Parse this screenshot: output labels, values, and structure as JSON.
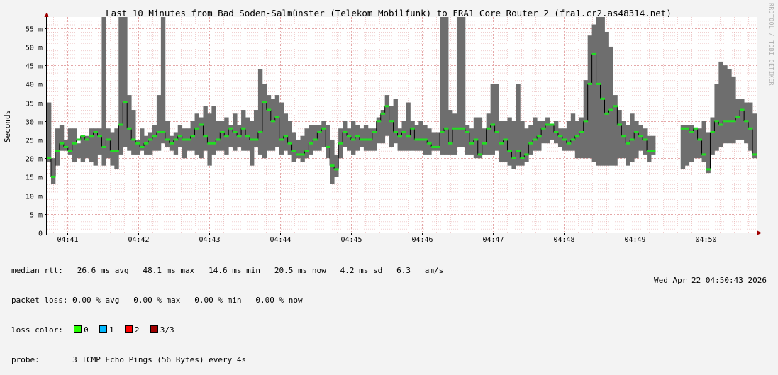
{
  "colors": {
    "canvas": "#f3f3f3",
    "plot_bg": "#ffffff",
    "grid": "#e5a8a8",
    "smoke": "#6e6e6e",
    "median": "#22dd22",
    "loss_0": "#26ff00",
    "loss_1": "#00b8ff",
    "loss_2": "#ff0000",
    "loss_3": "#a00000"
  },
  "side_label": "RRDTOOL / TOBI OETIKER",
  "chart_data": {
    "type": "area",
    "title": "Last 10 Minutes from Bad Soden-Salmünster (Telekom Mobilfunk) to FRA1 Core Router 2 (fra1.cr2.as48314.net)",
    "ylabel": "Seconds",
    "ylim": [
      0,
      58
    ],
    "yticks": [
      "0",
      "5 m",
      "10 m",
      "15 m",
      "20 m",
      "25 m",
      "30 m",
      "35 m",
      "40 m",
      "45 m",
      "50 m",
      "55 m"
    ],
    "xticks": [
      "04:41",
      "04:42",
      "04:43",
      "04:44",
      "04:45",
      "04:46",
      "04:47",
      "04:48",
      "04:49",
      "04:50"
    ],
    "grid": true,
    "series": [
      {
        "name": "median rtt",
        "median": [
          20,
          15,
          22,
          24,
          23,
          22,
          24,
          25,
          26,
          25,
          26,
          27,
          26,
          23,
          25,
          22,
          22,
          29,
          35,
          28,
          25,
          24,
          23,
          24,
          25,
          26,
          27,
          27,
          25,
          24,
          25,
          26,
          25,
          25,
          26,
          28,
          29,
          26,
          24,
          24,
          25,
          27,
          26,
          28,
          27,
          26,
          28,
          26,
          25,
          25,
          27,
          35,
          33,
          30,
          31,
          25,
          26,
          24,
          22,
          21,
          21,
          22,
          24,
          25,
          27,
          28,
          23,
          18,
          17,
          24,
          27,
          26,
          25,
          26,
          25,
          25,
          25,
          27,
          30,
          32,
          34,
          30,
          27,
          26,
          27,
          26,
          28,
          25,
          25,
          25,
          24,
          23,
          23,
          27,
          28,
          24,
          28,
          28,
          28,
          27,
          24,
          25,
          21,
          24,
          28,
          29,
          27,
          24,
          25,
          22,
          20,
          22,
          20,
          21,
          24,
          25,
          26,
          28,
          29,
          29,
          27,
          26,
          25,
          24,
          25,
          26,
          27,
          30,
          40,
          48,
          40,
          36,
          32,
          33,
          34,
          29,
          26,
          24,
          25,
          27,
          26,
          25,
          22,
          22,
          null,
          null,
          null,
          null,
          null,
          null,
          28,
          28,
          27,
          28,
          25,
          21,
          17,
          27,
          30,
          29,
          30,
          30,
          30,
          31,
          33,
          30,
          28,
          21
        ],
        "low": [
          19,
          13,
          18,
          22,
          22,
          21,
          19,
          20,
          19,
          20,
          19,
          18,
          21,
          18,
          20,
          18,
          17,
          21,
          23,
          22,
          21,
          21,
          22,
          21,
          21,
          22,
          22,
          24,
          23,
          22,
          21,
          23,
          20,
          22,
          22,
          21,
          20,
          22,
          18,
          21,
          22,
          22,
          21,
          23,
          22,
          23,
          22,
          22,
          18,
          23,
          21,
          20,
          22,
          22,
          23,
          21,
          22,
          21,
          19,
          20,
          19,
          20,
          21,
          22,
          22,
          23,
          20,
          13,
          15,
          20,
          23,
          22,
          21,
          22,
          23,
          22,
          22,
          22,
          24,
          24,
          26,
          23,
          24,
          22,
          22,
          22,
          22,
          22,
          22,
          21,
          21,
          22,
          22,
          21,
          21,
          21,
          21,
          23,
          23,
          21,
          21,
          20,
          20,
          21,
          21,
          21,
          22,
          19,
          19,
          18,
          17,
          18,
          18,
          19,
          21,
          22,
          22,
          24,
          24,
          25,
          24,
          23,
          22,
          22,
          22,
          20,
          20,
          20,
          20,
          19,
          18,
          18,
          18,
          18,
          18,
          20,
          20,
          18,
          19,
          20,
          22,
          21,
          19,
          21,
          null,
          null,
          null,
          null,
          null,
          null,
          17,
          18,
          19,
          20,
          20,
          19,
          16,
          21,
          22,
          23,
          24,
          24,
          24,
          25,
          25,
          24,
          22,
          20
        ],
        "high": [
          35,
          20,
          28,
          29,
          25,
          28,
          28,
          24,
          26,
          26,
          28,
          28,
          28,
          58,
          28,
          27,
          28,
          58,
          58,
          37,
          33,
          25,
          28,
          26,
          27,
          29,
          37,
          58,
          30,
          26,
          27,
          29,
          28,
          28,
          30,
          32,
          31,
          34,
          32,
          34,
          30,
          30,
          31,
          29,
          32,
          29,
          33,
          31,
          30,
          33,
          44,
          40,
          37,
          36,
          37,
          35,
          32,
          30,
          27,
          25,
          26,
          28,
          29,
          29,
          29,
          30,
          29,
          25,
          21,
          28,
          30,
          28,
          30,
          29,
          28,
          29,
          28,
          28,
          31,
          33,
          37,
          34,
          36,
          28,
          30,
          35,
          30,
          29,
          30,
          29,
          28,
          27,
          27,
          58,
          58,
          33,
          32,
          58,
          58,
          29,
          28,
          31,
          31,
          28,
          32,
          40,
          40,
          30,
          30,
          31,
          30,
          40,
          30,
          28,
          29,
          31,
          30,
          30,
          31,
          29,
          30,
          28,
          28,
          30,
          32,
          30,
          31,
          41,
          53,
          56,
          58,
          58,
          54,
          50,
          37,
          33,
          30,
          29,
          32,
          30,
          29,
          28,
          26,
          26,
          null,
          null,
          null,
          null,
          null,
          null,
          29,
          29,
          29,
          28,
          28,
          30,
          27,
          31,
          40,
          46,
          45,
          44,
          42,
          36,
          36,
          35,
          35,
          32
        ]
      }
    ],
    "median_markers_color": "green"
  },
  "legend": {
    "rows": [
      {
        "label": "median rtt:",
        "values": "26.6 ms avg   48.1 ms max   14.6 ms min   20.5 ms now   4.2 ms sd   6.3   am/s"
      },
      {
        "label": "packet loss:",
        "values": "0.00 % avg   0.00 % max   0.00 % min   0.00 % now"
      },
      {
        "label": "loss color:"
      },
      {
        "label": "probe:",
        "values": "3 ICMP Echo Pings (56 Bytes) every 4s"
      }
    ],
    "loss_colors": [
      {
        "label": "0",
        "color": "#26ff00"
      },
      {
        "label": "1",
        "color": "#00b8ff"
      },
      {
        "label": "2",
        "color": "#ff0000"
      },
      {
        "label": "3/3",
        "color": "#a00000"
      }
    ]
  },
  "timestamp": "Wed Apr 22 04:50:43 2026"
}
